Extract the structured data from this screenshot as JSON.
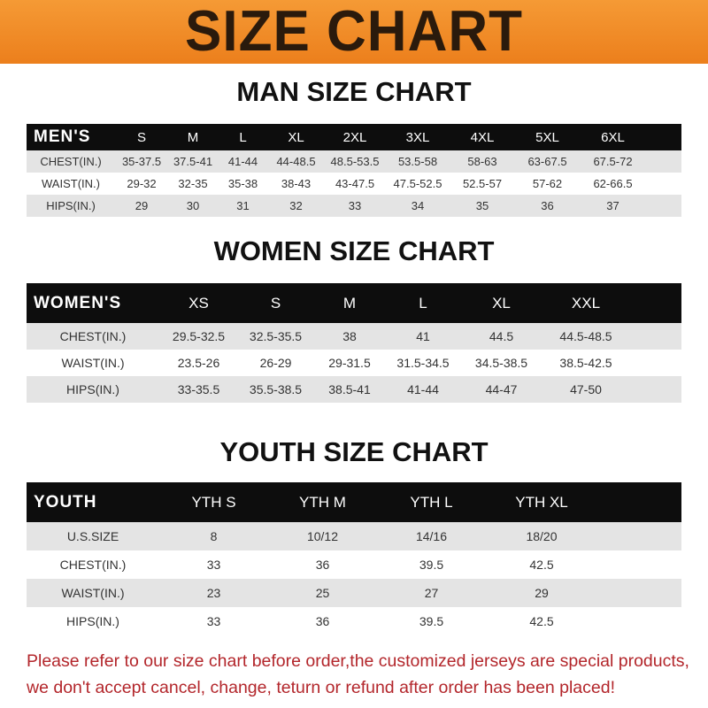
{
  "banner": "SIZE CHART",
  "men": {
    "title": "MAN SIZE CHART",
    "header": "MEN'S",
    "sizes": [
      "S",
      "M",
      "L",
      "XL",
      "2XL",
      "3XL",
      "4XL",
      "5XL",
      "6XL"
    ],
    "rows": [
      {
        "label": "CHEST(IN.)",
        "values": [
          "35-37.5",
          "37.5-41",
          "41-44",
          "44-48.5",
          "48.5-53.5",
          "53.5-58",
          "58-63",
          "63-67.5",
          "67.5-72"
        ]
      },
      {
        "label": "WAIST(IN.)",
        "values": [
          "29-32",
          "32-35",
          "35-38",
          "38-43",
          "43-47.5",
          "47.5-52.5",
          "52.5-57",
          "57-62",
          "62-66.5"
        ]
      },
      {
        "label": "HIPS(IN.)",
        "values": [
          "29",
          "30",
          "31",
          "32",
          "33",
          "34",
          "35",
          "36",
          "37"
        ]
      }
    ]
  },
  "women": {
    "title": "WOMEN SIZE CHART",
    "header": "WOMEN'S",
    "sizes": [
      "XS",
      "S",
      "M",
      "L",
      "XL",
      "XXL"
    ],
    "rows": [
      {
        "label": "CHEST(IN.)",
        "values": [
          "29.5-32.5",
          "32.5-35.5",
          "38",
          "41",
          "44.5",
          "44.5-48.5"
        ]
      },
      {
        "label": "WAIST(IN.)",
        "values": [
          "23.5-26",
          "26-29",
          "29-31.5",
          "31.5-34.5",
          "34.5-38.5",
          "38.5-42.5"
        ]
      },
      {
        "label": "HIPS(IN.)",
        "values": [
          "33-35.5",
          "35.5-38.5",
          "38.5-41",
          "41-44",
          "44-47",
          "47-50"
        ]
      }
    ]
  },
  "youth": {
    "title": "YOUTH SIZE CHART",
    "header": "YOUTH",
    "sizes": [
      "YTH S",
      "YTH M",
      "YTH L",
      "YTH XL"
    ],
    "rows": [
      {
        "label": "U.S.SIZE",
        "values": [
          "8",
          "10/12",
          "14/16",
          "18/20"
        ]
      },
      {
        "label": "CHEST(IN.)",
        "values": [
          "33",
          "36",
          "39.5",
          "42.5"
        ]
      },
      {
        "label": "WAIST(IN.)",
        "values": [
          "23",
          "25",
          "27",
          "29"
        ]
      },
      {
        "label": "HIPS(IN.)",
        "values": [
          "33",
          "36",
          "39.5",
          "42.5"
        ]
      }
    ]
  },
  "note": {
    "line1": "Please refer to our size chart before order,the customized jerseys are special products,",
    "line2": "we don't accept cancel, change, teturn or refund after order has been placed!"
  }
}
